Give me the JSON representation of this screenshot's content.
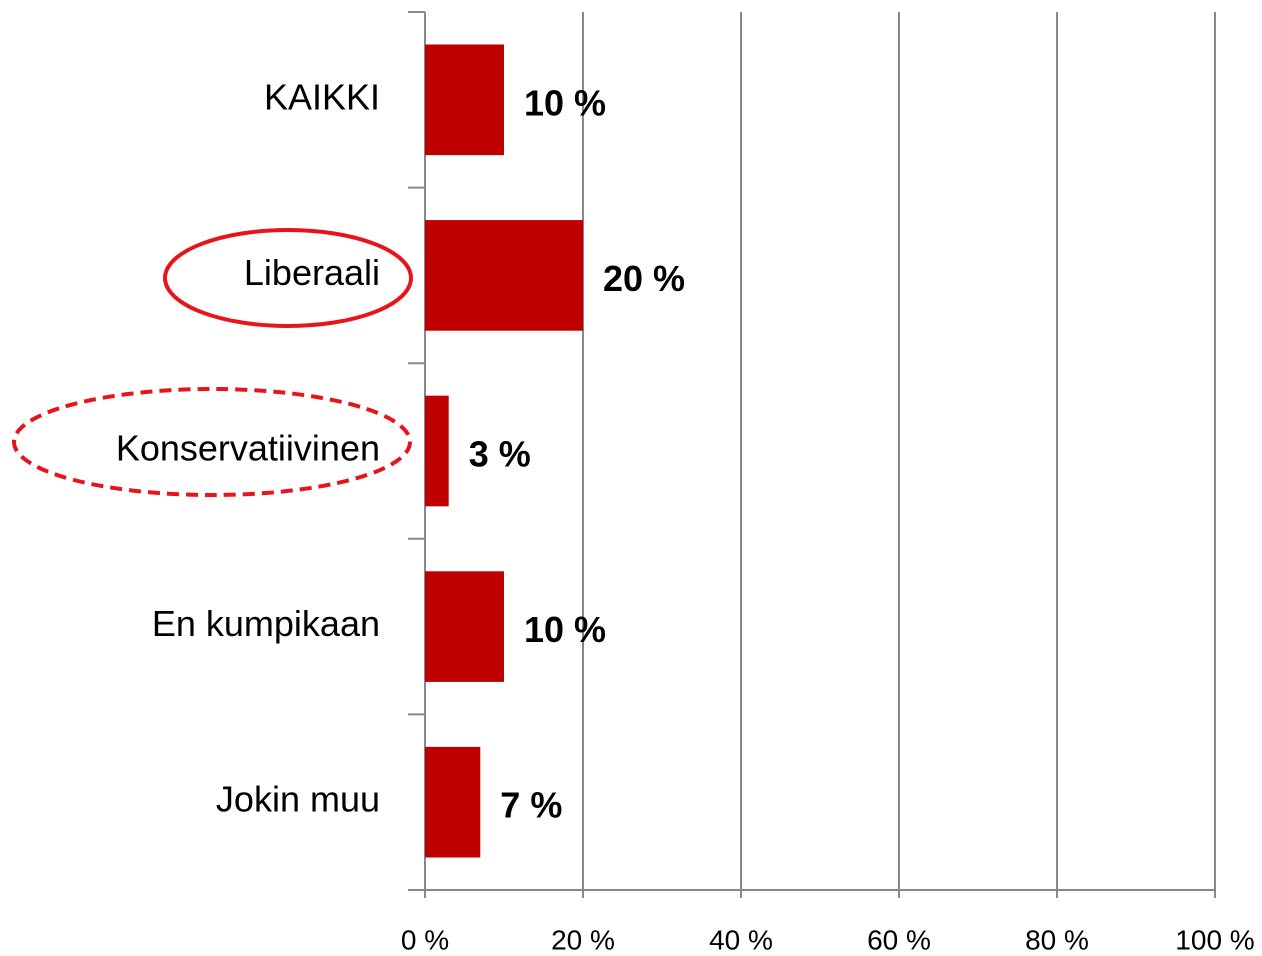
{
  "chart_data": {
    "type": "bar",
    "categories": [
      "KAIKKI",
      "Liberaali",
      "Konservatiivinen",
      "En kumpikaan",
      "Jokin muu"
    ],
    "values": [
      10,
      20,
      3,
      10,
      7
    ],
    "value_labels": [
      "10 %",
      "20 %",
      "3 %",
      "10 %",
      "7 %"
    ],
    "color": "#c00000",
    "xlim": [
      0,
      100
    ],
    "xticks": [
      {
        "value": 0,
        "label": "0 %"
      },
      {
        "value": 20,
        "label": "20 %"
      },
      {
        "value": 40,
        "label": "40 %"
      },
      {
        "value": 60,
        "label": "60 %"
      },
      {
        "value": 80,
        "label": "80 %"
      },
      {
        "value": 100,
        "label": "100 %"
      }
    ],
    "grid": true
  }
}
